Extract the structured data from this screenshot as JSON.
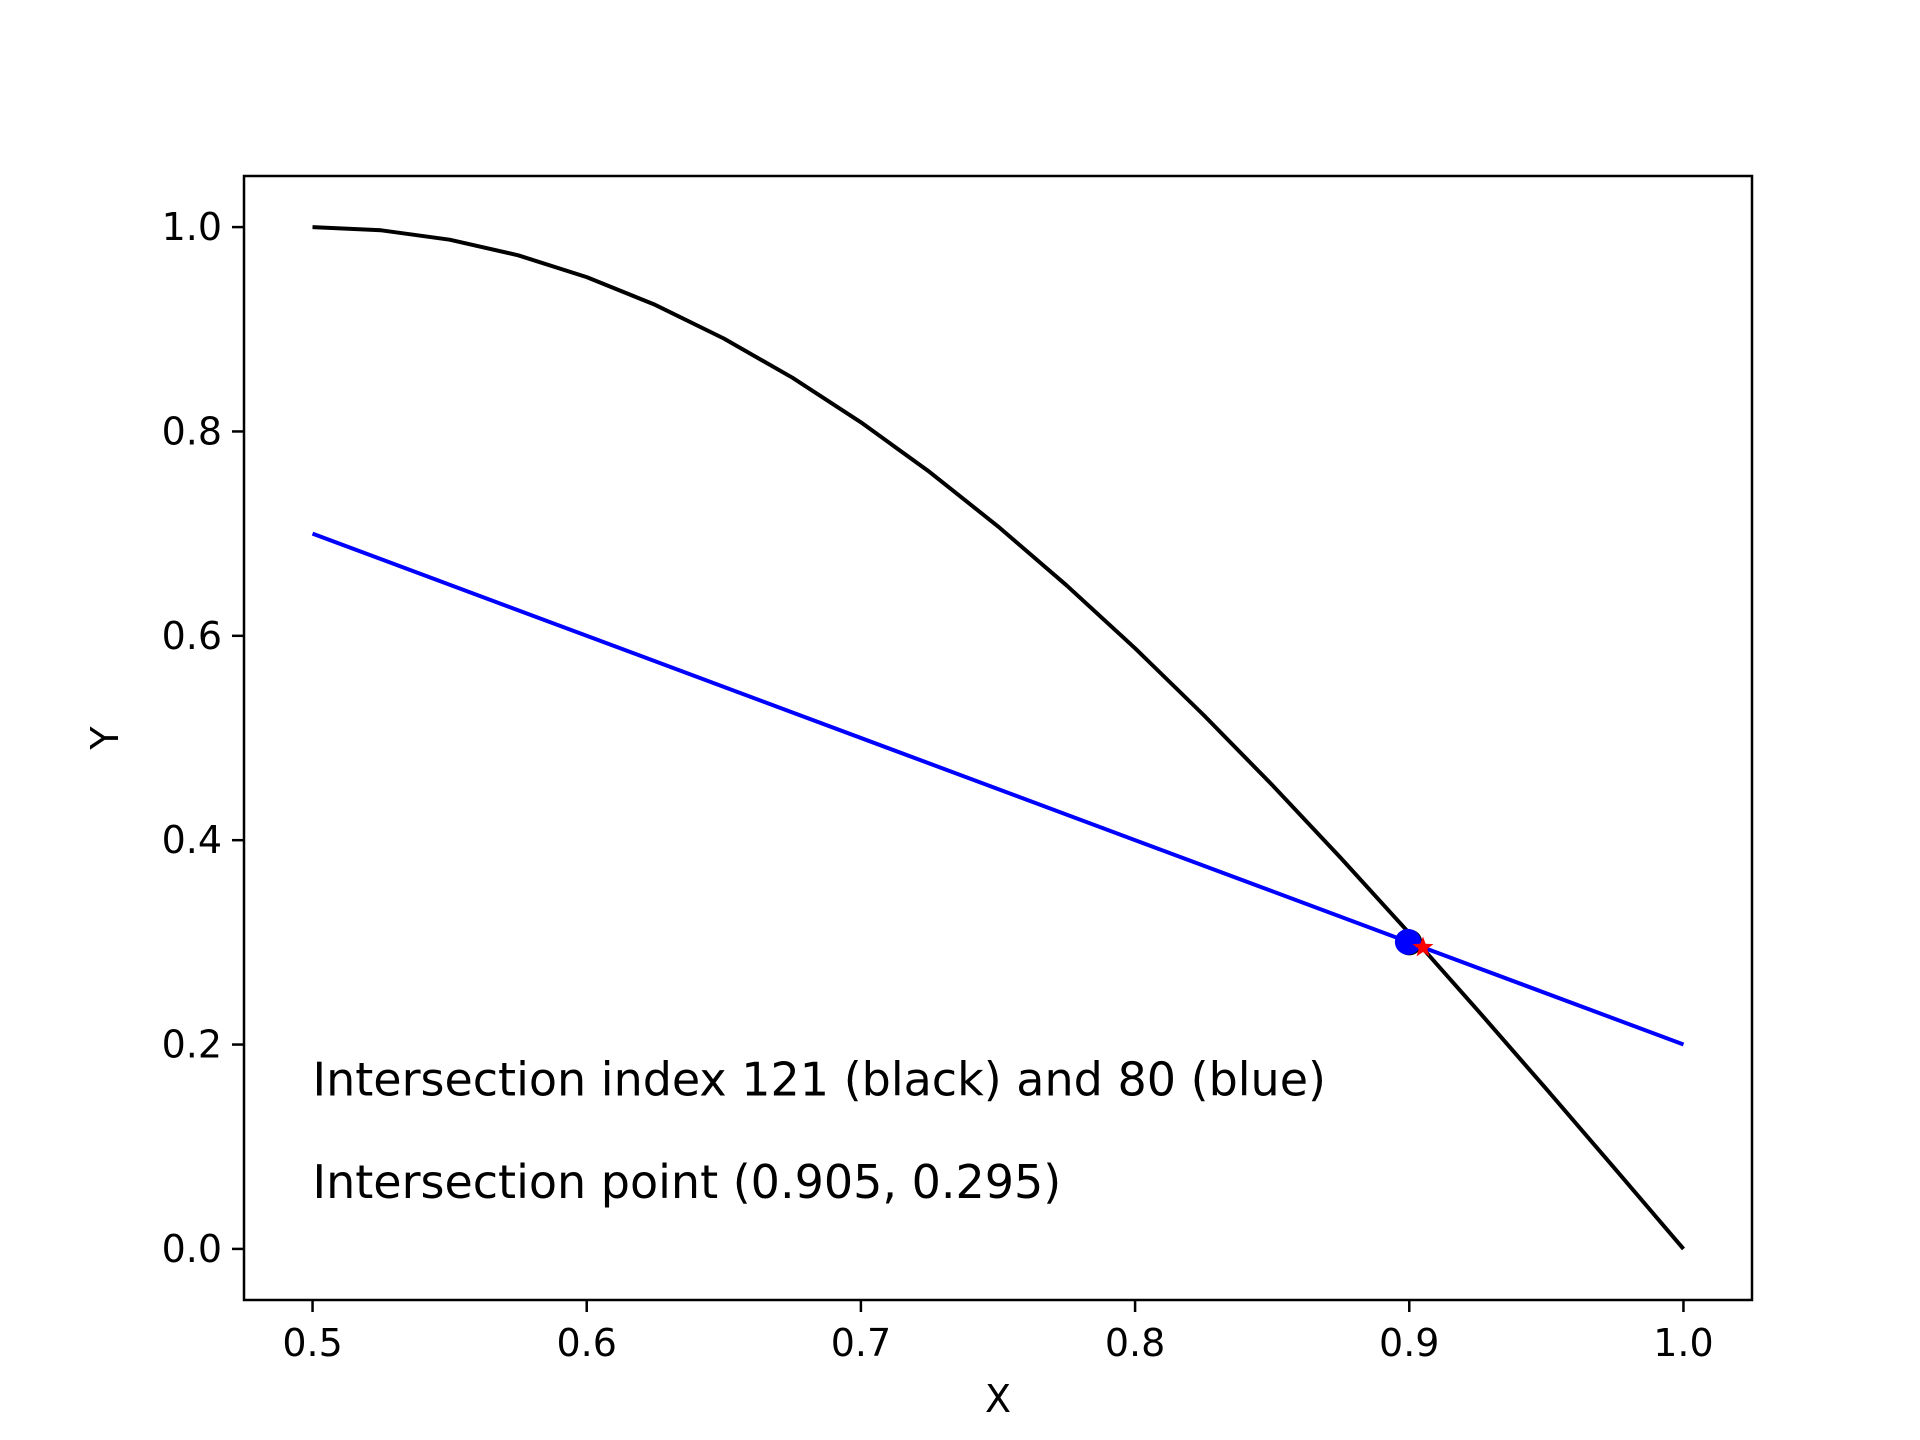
{
  "chart_data": {
    "type": "line",
    "title": "",
    "xlabel": "X",
    "ylabel": "Y",
    "xlim": [
      0.475,
      1.025
    ],
    "ylim": [
      -0.05,
      1.05
    ],
    "grid": false,
    "xticks": [
      0.5,
      0.6,
      0.7,
      0.8,
      0.9,
      1.0
    ],
    "xtick_labels": [
      "0.5",
      "0.6",
      "0.7",
      "0.8",
      "0.9",
      "1.0"
    ],
    "yticks": [
      0.0,
      0.2,
      0.4,
      0.6,
      0.8,
      1.0
    ],
    "ytick_labels": [
      "0.0",
      "0.2",
      "0.4",
      "0.6",
      "0.8",
      "1.0"
    ],
    "series": [
      {
        "color": "#000000",
        "x": [
          0.5,
          0.525,
          0.55,
          0.575,
          0.6,
          0.625,
          0.65,
          0.675,
          0.7,
          0.725,
          0.75,
          0.775,
          0.8,
          0.825,
          0.85,
          0.875,
          0.9,
          0.925,
          0.95,
          0.975,
          1.0
        ],
        "y": [
          1.0,
          0.9969,
          0.9877,
          0.9724,
          0.9511,
          0.9239,
          0.891,
          0.8526,
          0.809,
          0.7604,
          0.7071,
          0.6494,
          0.5878,
          0.5225,
          0.454,
          0.3827,
          0.309,
          0.2334,
          0.1564,
          0.0785,
          0.0
        ]
      },
      {
        "color": "#0000ff",
        "x": [
          0.5,
          1.0
        ],
        "y": [
          0.7,
          0.2
        ]
      }
    ],
    "markers": [
      {
        "x": 0.9,
        "y": 0.3,
        "color": "#000000",
        "shape": "circle"
      },
      {
        "x": 0.8995,
        "y": 0.3005,
        "color": "#0000ff",
        "shape": "circle"
      },
      {
        "x": 0.905,
        "y": 0.295,
        "color": "#ff0000",
        "shape": "star"
      }
    ],
    "annotations": [
      {
        "text": "Intersection index 121 (black) and 80 (blue)",
        "x": 0.5,
        "y": 0.15
      },
      {
        "text": "Intersection point (0.905, 0.295)",
        "x": 0.5,
        "y": 0.05
      }
    ]
  }
}
